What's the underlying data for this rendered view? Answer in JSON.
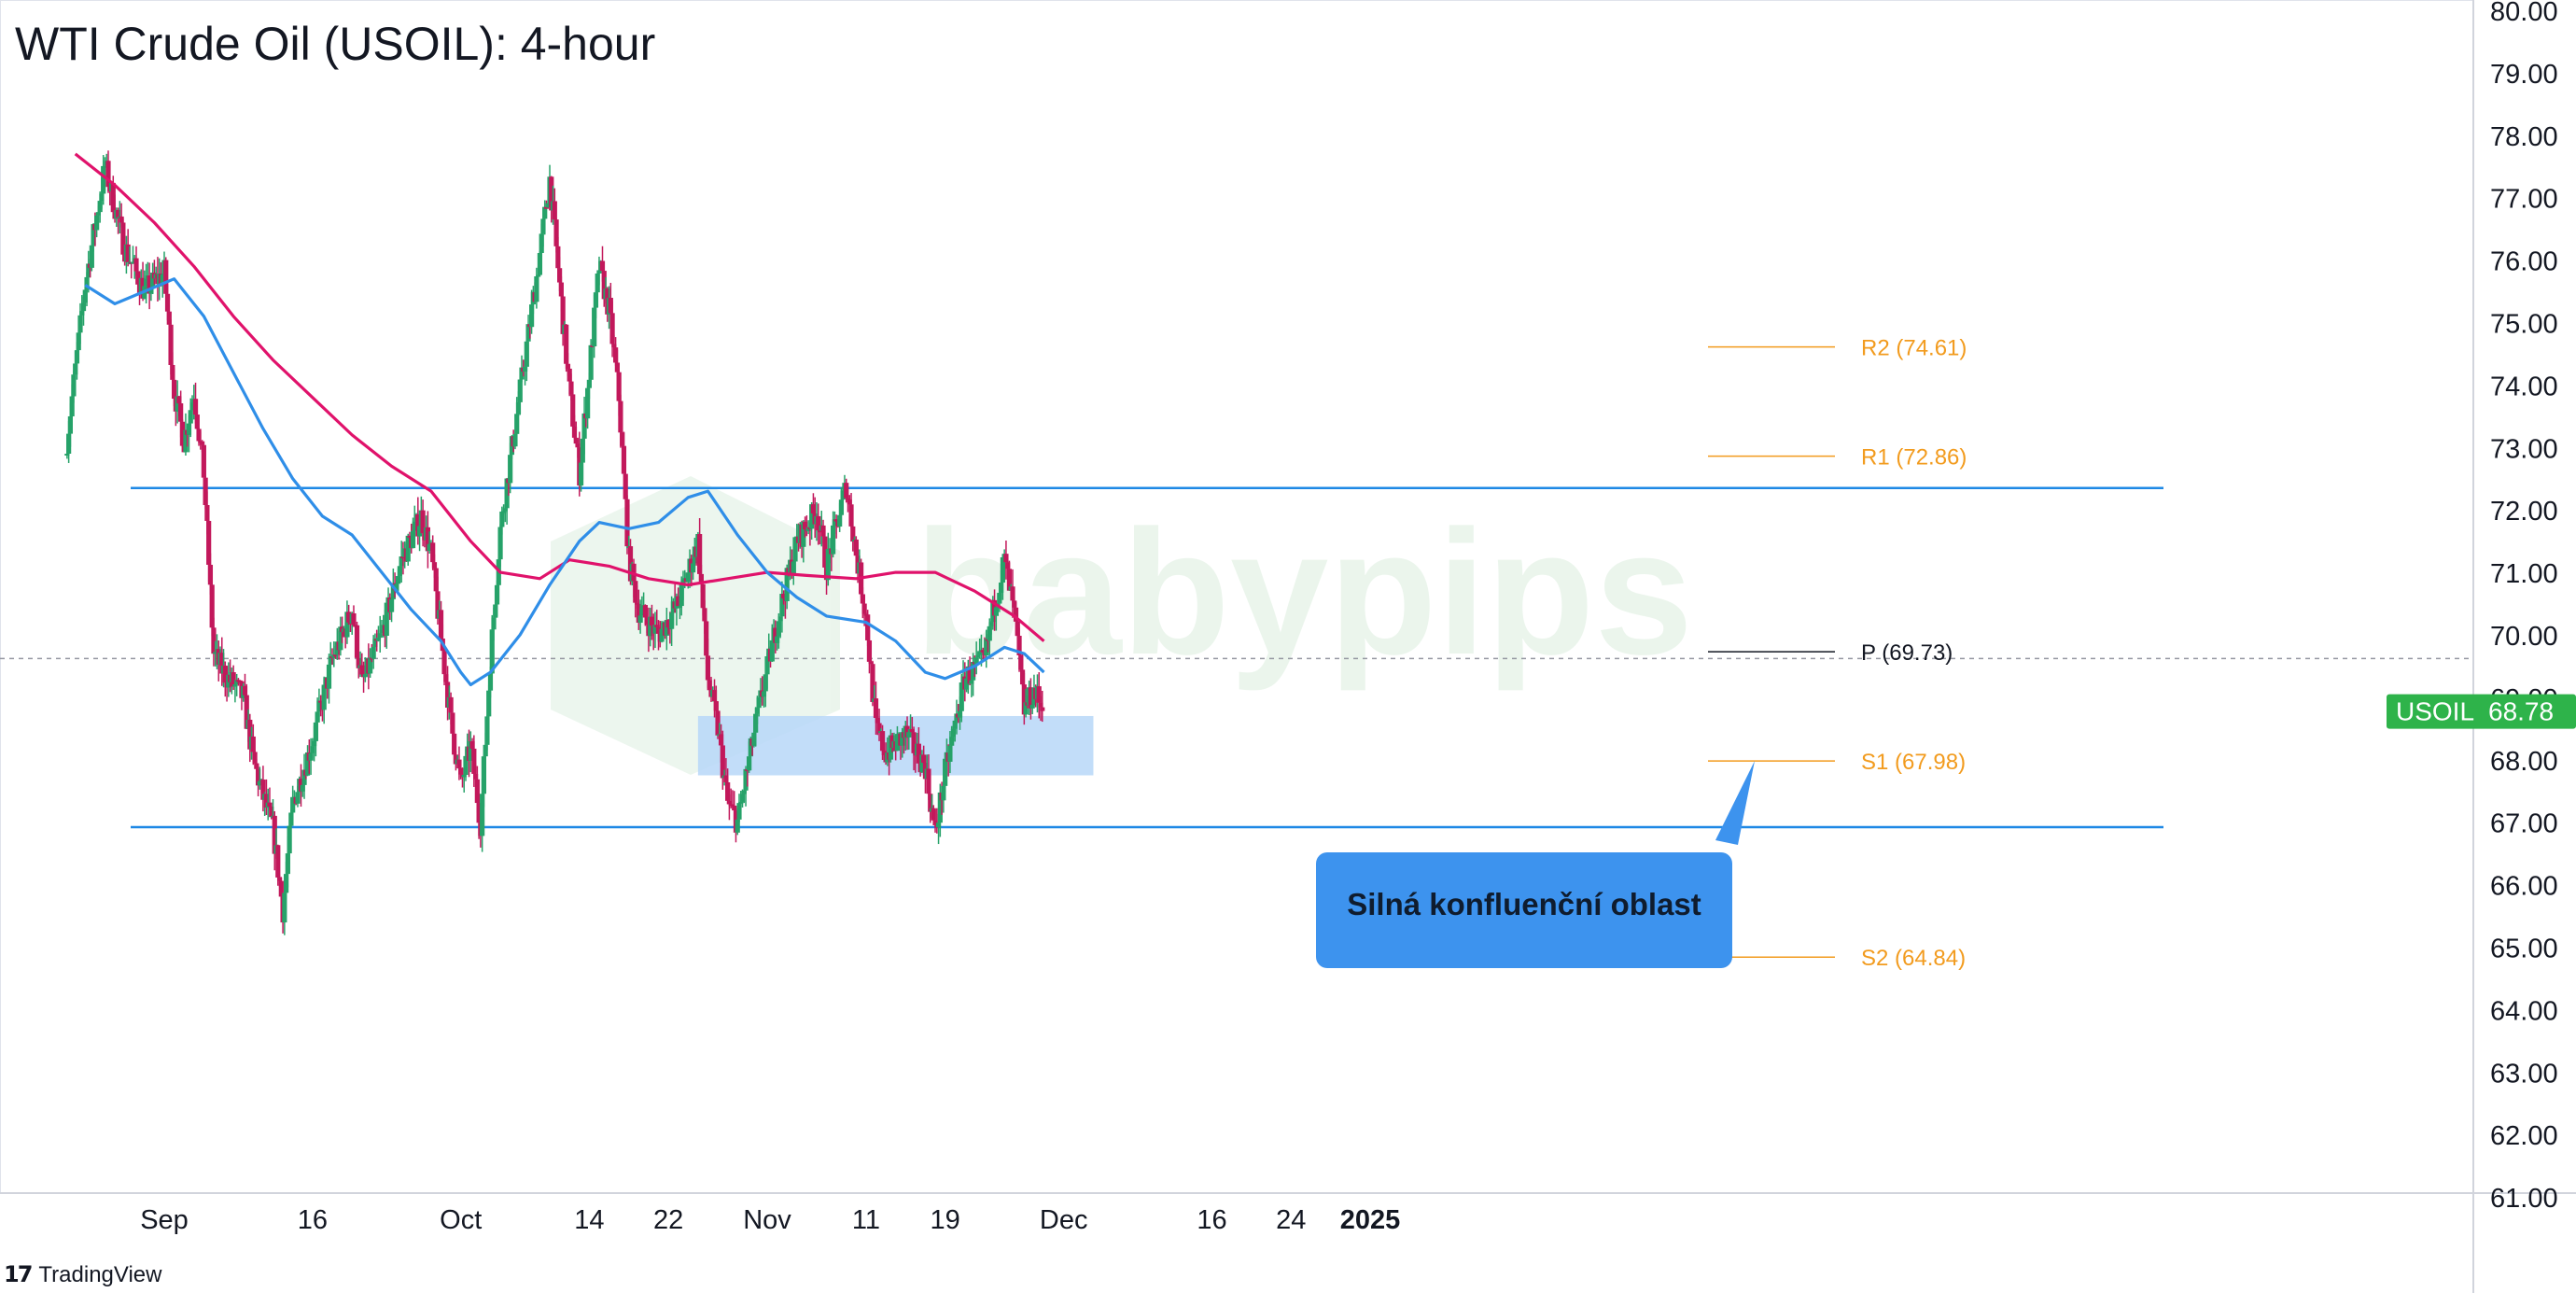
{
  "chart_title": "WTI Crude Oil (USOIL): 4-hour",
  "branding": {
    "logo": "tradingview-logo",
    "text": "TradingView",
    "watermark": "babypips"
  },
  "colors": {
    "bull": "#26a269",
    "bear": "#c2185b",
    "sma_fast": "#2f8ee8",
    "sma_slow": "#e0126b",
    "support_resistance": "#1e88e5",
    "pivot_text": "#131722",
    "level_text": "#f29b1e",
    "zone": "#b7d7f8",
    "callout": "#3d93ee",
    "price_badge": "#2eb34a"
  },
  "chart_data": {
    "type": "candlestick",
    "symbol": "USOIL",
    "timeframe": "4-hour",
    "last_price": 68.78,
    "ylim": [
      61.0,
      80.0
    ],
    "y_ticks": [
      "80.00",
      "79.00",
      "78.00",
      "77.00",
      "76.00",
      "75.00",
      "74.00",
      "73.00",
      "72.00",
      "71.00",
      "70.00",
      "69.00",
      "68.00",
      "67.00",
      "66.00",
      "65.00",
      "64.00",
      "63.00",
      "62.00",
      "61.00"
    ],
    "x_ticks": [
      {
        "label": "Sep",
        "date": "2024-09-01"
      },
      {
        "label": "16",
        "date": "2024-09-16"
      },
      {
        "label": "Oct",
        "date": "2024-10-01"
      },
      {
        "label": "14",
        "date": "2024-10-14"
      },
      {
        "label": "22",
        "date": "2024-10-22"
      },
      {
        "label": "Nov",
        "date": "2024-11-01"
      },
      {
        "label": "11",
        "date": "2024-11-11"
      },
      {
        "label": "19",
        "date": "2024-11-19"
      },
      {
        "label": "Dec",
        "date": "2024-12-01"
      },
      {
        "label": "16",
        "date": "2024-12-16"
      },
      {
        "label": "24",
        "date": "2024-12-24"
      },
      {
        "label": "2025",
        "date": "2025-01-01"
      }
    ],
    "pivot_levels": [
      {
        "label": "R2 (74.61)",
        "value": 74.61,
        "style": "orange"
      },
      {
        "label": "R1 (72.86)",
        "value": 72.86,
        "style": "orange"
      },
      {
        "label": "P (69.73)",
        "value": 69.73,
        "style": "dark"
      },
      {
        "label": "S1 (67.98)",
        "value": 67.98,
        "style": "orange"
      },
      {
        "label": "S2 (64.84)",
        "value": 64.84,
        "style": "orange"
      }
    ],
    "horizontal_lines": [
      72.35,
      66.92
    ],
    "pivot_dashed": 69.62,
    "zone": {
      "from_date": "2024-10-25",
      "to_date": "2024-12-04",
      "low": 67.75,
      "high": 68.7
    },
    "annotation": "Silná konfluenční oblast",
    "sma_fast": [
      [
        "2024-08-24",
        75.6
      ],
      [
        "2024-08-27",
        75.3
      ],
      [
        "2024-08-30",
        75.5
      ],
      [
        "2024-09-02",
        75.7
      ],
      [
        "2024-09-05",
        75.1
      ],
      [
        "2024-09-08",
        74.2
      ],
      [
        "2024-09-11",
        73.3
      ],
      [
        "2024-09-14",
        72.5
      ],
      [
        "2024-09-17",
        71.9
      ],
      [
        "2024-09-20",
        71.6
      ],
      [
        "2024-09-23",
        71.0
      ],
      [
        "2024-09-26",
        70.4
      ],
      [
        "2024-09-29",
        69.9
      ],
      [
        "2024-10-01",
        69.4
      ],
      [
        "2024-10-02",
        69.2
      ],
      [
        "2024-10-04",
        69.4
      ],
      [
        "2024-10-07",
        70.0
      ],
      [
        "2024-10-10",
        70.8
      ],
      [
        "2024-10-13",
        71.5
      ],
      [
        "2024-10-15",
        71.8
      ],
      [
        "2024-10-18",
        71.7
      ],
      [
        "2024-10-21",
        71.8
      ],
      [
        "2024-10-24",
        72.2
      ],
      [
        "2024-10-26",
        72.3
      ],
      [
        "2024-10-29",
        71.6
      ],
      [
        "2024-11-01",
        71.0
      ],
      [
        "2024-11-04",
        70.6
      ],
      [
        "2024-11-07",
        70.3
      ],
      [
        "2024-11-11",
        70.2
      ],
      [
        "2024-11-14",
        69.9
      ],
      [
        "2024-11-17",
        69.4
      ],
      [
        "2024-11-19",
        69.3
      ],
      [
        "2024-11-22",
        69.5
      ],
      [
        "2024-11-25",
        69.8
      ],
      [
        "2024-11-27",
        69.7
      ],
      [
        "2024-11-29",
        69.4
      ]
    ],
    "sma_slow": [
      [
        "2024-08-23",
        77.7
      ],
      [
        "2024-08-27",
        77.2
      ],
      [
        "2024-08-31",
        76.6
      ],
      [
        "2024-09-04",
        75.9
      ],
      [
        "2024-09-08",
        75.1
      ],
      [
        "2024-09-12",
        74.4
      ],
      [
        "2024-09-16",
        73.8
      ],
      [
        "2024-09-20",
        73.2
      ],
      [
        "2024-09-24",
        72.7
      ],
      [
        "2024-09-28",
        72.3
      ],
      [
        "2024-10-02",
        71.5
      ],
      [
        "2024-10-05",
        71.0
      ],
      [
        "2024-10-09",
        70.9
      ],
      [
        "2024-10-12",
        71.2
      ],
      [
        "2024-10-16",
        71.1
      ],
      [
        "2024-10-20",
        70.9
      ],
      [
        "2024-10-24",
        70.8
      ],
      [
        "2024-10-28",
        70.9
      ],
      [
        "2024-11-01",
        71.0
      ],
      [
        "2024-11-05",
        70.95
      ],
      [
        "2024-11-10",
        70.9
      ],
      [
        "2024-11-14",
        71.0
      ],
      [
        "2024-11-18",
        71.0
      ],
      [
        "2024-11-22",
        70.7
      ],
      [
        "2024-11-26",
        70.3
      ],
      [
        "2024-11-29",
        69.9
      ]
    ],
    "ohlc_path": [
      [
        "2024-08-22",
        72.9
      ],
      [
        "2024-08-24",
        75.6
      ],
      [
        "2024-08-26",
        77.5
      ],
      [
        "2024-08-28",
        76.2
      ],
      [
        "2024-08-30",
        75.5
      ],
      [
        "2024-09-01",
        75.8
      ],
      [
        "2024-09-02",
        73.9
      ],
      [
        "2024-09-03",
        73.1
      ],
      [
        "2024-09-04",
        73.9
      ],
      [
        "2024-09-05",
        72.6
      ],
      [
        "2024-09-06",
        69.7
      ],
      [
        "2024-09-07",
        69.4
      ],
      [
        "2024-09-09",
        69.0
      ],
      [
        "2024-09-10",
        68.0
      ],
      [
        "2024-09-11",
        67.4
      ],
      [
        "2024-09-12",
        66.9
      ],
      [
        "2024-09-13",
        65.6
      ],
      [
        "2024-09-14",
        67.3
      ],
      [
        "2024-09-16",
        68.3
      ],
      [
        "2024-09-18",
        69.6
      ],
      [
        "2024-09-20",
        70.4
      ],
      [
        "2024-09-21",
        69.2
      ],
      [
        "2024-09-23",
        70.0
      ],
      [
        "2024-09-25",
        71.2
      ],
      [
        "2024-09-27",
        71.9
      ],
      [
        "2024-09-28",
        71.3
      ],
      [
        "2024-09-30",
        68.6
      ],
      [
        "2024-10-01",
        67.6
      ],
      [
        "2024-10-02",
        68.2
      ],
      [
        "2024-10-03",
        67.0
      ],
      [
        "2024-10-04",
        69.6
      ],
      [
        "2024-10-05",
        71.7
      ],
      [
        "2024-10-07",
        73.9
      ],
      [
        "2024-10-09",
        76.1
      ],
      [
        "2024-10-10",
        77.3
      ],
      [
        "2024-10-11",
        75.6
      ],
      [
        "2024-10-12",
        73.9
      ],
      [
        "2024-10-13",
        72.6
      ],
      [
        "2024-10-14",
        74.2
      ],
      [
        "2024-10-15",
        75.9
      ],
      [
        "2024-10-16",
        75.2
      ],
      [
        "2024-10-17",
        73.8
      ],
      [
        "2024-10-18",
        71.2
      ],
      [
        "2024-10-19",
        70.4
      ],
      [
        "2024-10-21",
        70.0
      ],
      [
        "2024-10-23",
        70.5
      ],
      [
        "2024-10-25",
        71.5
      ],
      [
        "2024-10-26",
        69.3
      ],
      [
        "2024-10-27",
        68.5
      ],
      [
        "2024-10-28",
        67.3
      ],
      [
        "2024-10-29",
        67.0
      ],
      [
        "2024-10-31",
        68.7
      ],
      [
        "2024-11-02",
        70.2
      ],
      [
        "2024-11-04",
        71.5
      ],
      [
        "2024-11-06",
        72.0
      ],
      [
        "2024-11-07",
        71.1
      ],
      [
        "2024-11-09",
        72.4
      ],
      [
        "2024-11-10",
        71.3
      ],
      [
        "2024-11-11",
        70.3
      ],
      [
        "2024-11-12",
        68.5
      ],
      [
        "2024-11-13",
        68.1
      ],
      [
        "2024-11-15",
        68.4
      ],
      [
        "2024-11-17",
        67.9
      ],
      [
        "2024-11-18",
        66.8
      ],
      [
        "2024-11-19",
        67.8
      ],
      [
        "2024-11-21",
        69.3
      ],
      [
        "2024-11-23",
        69.6
      ],
      [
        "2024-11-24",
        70.5
      ],
      [
        "2024-11-25",
        71.2
      ],
      [
        "2024-11-26",
        70.3
      ],
      [
        "2024-11-27",
        68.8
      ],
      [
        "2024-11-28",
        69.1
      ],
      [
        "2024-11-29",
        68.78
      ]
    ]
  }
}
